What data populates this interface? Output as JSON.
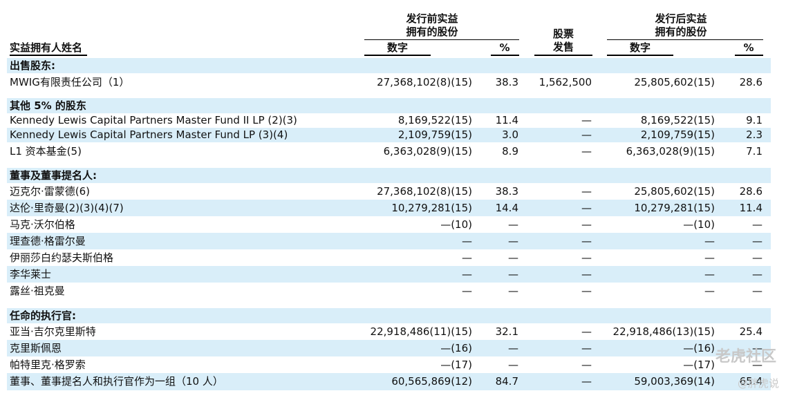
{
  "header": {
    "name_col": "实益拥有人姓名",
    "pre_group": "发行前实益\n拥有的股份",
    "shares_sold": "股票\n发售",
    "post_group": "发行后实益\n拥有的股份",
    "pre_number": "数字",
    "pre_pct": "%",
    "post_number": "数字",
    "post_pct": "%"
  },
  "rows": [
    {
      "name": "出售股东:",
      "section": true,
      "shade": true
    },
    {
      "name": "MWIG有限责任公司（1）",
      "pre": "27,368,102(8)(15)",
      "pre_pct": "38.3",
      "sold": "1,562,500",
      "post": "25,805,602(15)",
      "post_pct": "28.6"
    },
    {
      "name": "其他 5% 的股东",
      "section": true,
      "shade": true
    },
    {
      "name": "Kennedy Lewis Capital Partners Master Fund II LP (2)(3)",
      "pre": "8,169,522(15)",
      "pre_pct": "11.4",
      "sold": "—",
      "post": "8,169,522(15)",
      "post_pct": "9.1"
    },
    {
      "name": "Kennedy Lewis Capital Partners Master Fund LP (3)(4)",
      "pre": "2,109,759(15)",
      "pre_pct": "3.0",
      "sold": "—",
      "post": "2,109,759(15)",
      "post_pct": "2.3",
      "shade": true
    },
    {
      "name": "L1 资本基金(5)",
      "pre": "6,363,028(9)(15)",
      "pre_pct": "8.9",
      "sold": "—",
      "post": "6,363,028(9)(15)",
      "post_pct": "7.1"
    },
    {
      "name": "董事及董事提名人:",
      "section": true,
      "shade": true
    },
    {
      "name": "迈克尔·雷蒙德(6)",
      "pre": "27,368,102(8)(15)",
      "pre_pct": "38.3",
      "sold": "—",
      "post": "25,805,602(15)",
      "post_pct": "28.6"
    },
    {
      "name": "达伦·里奇曼(2)(3)(4)(7)",
      "pre": "10,279,281(15)",
      "pre_pct": "14.4",
      "sold": "—",
      "post": "10,279,281(15)",
      "post_pct": "11.4",
      "shade": true
    },
    {
      "name": "马克·沃尔伯格",
      "pre": "—(10)",
      "pre_pct": "—",
      "sold": "—",
      "post": "—(10)",
      "post_pct": "—"
    },
    {
      "name": "理查德·格雷尔曼",
      "pre": "—",
      "pre_pct": "—",
      "sold": "—",
      "post": "—",
      "post_pct": "—",
      "shade": true
    },
    {
      "name": "伊丽莎白约瑟夫斯伯格",
      "pre": "—",
      "pre_pct": "—",
      "sold": "—",
      "post": "—",
      "post_pct": "—"
    },
    {
      "name": "李华莱士",
      "pre": "—",
      "pre_pct": "—",
      "sold": "—",
      "post": "—",
      "post_pct": "—",
      "shade": true
    },
    {
      "name": "露丝·祖克曼",
      "pre": "—",
      "pre_pct": "—",
      "sold": "—",
      "post": "—",
      "post_pct": "—"
    },
    {
      "name": "任命的执行官:",
      "section": true,
      "shade": true
    },
    {
      "name": "亚当·吉尔克里斯特",
      "pre": "22,918,486(11)(15)",
      "pre_pct": "32.1",
      "sold": "—",
      "post": "22,918,486(13)(15)",
      "post_pct": "25.4"
    },
    {
      "name": "克里斯佩恩",
      "pre": "—(16)",
      "pre_pct": "—",
      "sold": "—",
      "post": "—(16)",
      "post_pct": "—",
      "shade": true
    },
    {
      "name": "帕特里克·格罗索",
      "pre": "—(17)",
      "pre_pct": "—",
      "sold": "—",
      "post": "—(17)",
      "post_pct": "—"
    },
    {
      "name": "董事、董事提名人和执行官作为一组（10 人）",
      "pre": "60,565,869(12)",
      "pre_pct": "84.7",
      "sold": "—",
      "post": "59,003,369(14)",
      "post_pct": "65.4",
      "shade": true
    }
  ],
  "watermark": {
    "main": "老虎社区",
    "sub": "@胖虎说"
  }
}
